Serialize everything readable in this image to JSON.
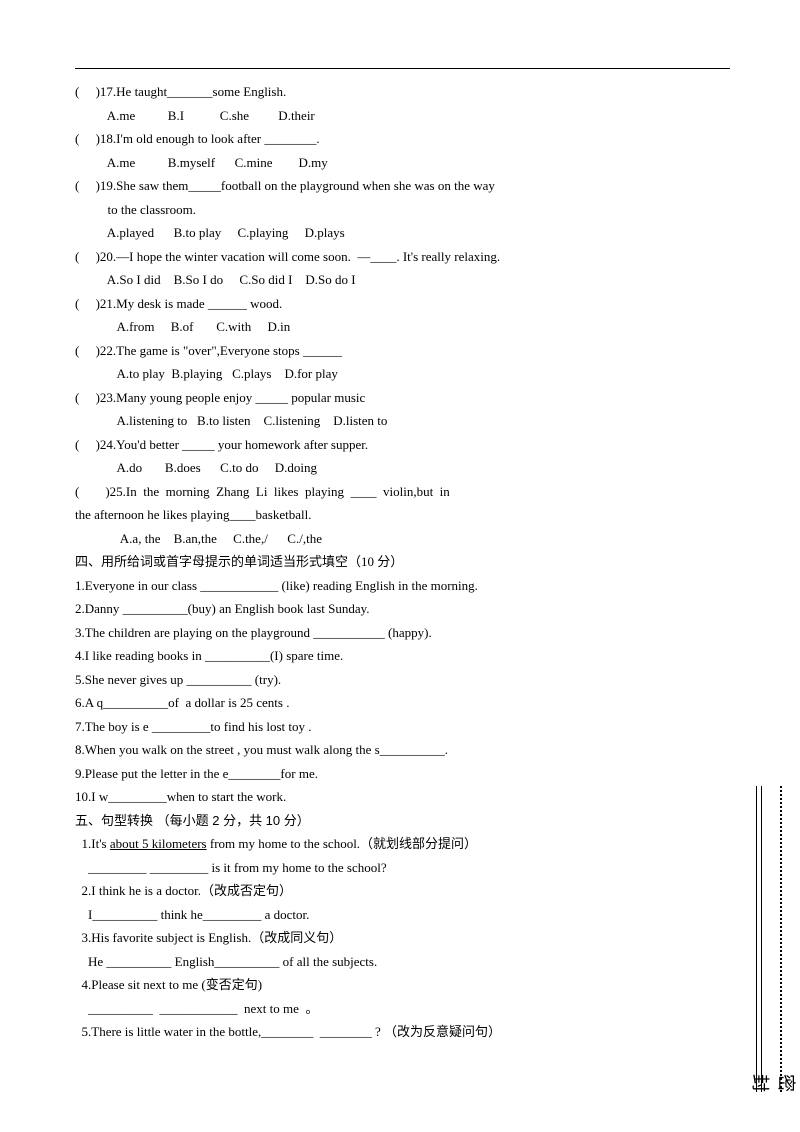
{
  "questions": [
    {
      "num": "17",
      "stem": "He taught_______some English.",
      "opts": [
        "A.me",
        "B.I",
        "C.she",
        "D.their"
      ]
    },
    {
      "num": "18",
      "stem": "I'm old enough to look after ________.",
      "opts": [
        "A.me",
        "B.myself",
        "C.mine",
        "D.my"
      ]
    },
    {
      "num": "19",
      "stem": "She saw them_____football on the playground when she was on the way\n          to the classroom.",
      "opts": [
        "A.played",
        "B.to play",
        "C.playing",
        "D.plays"
      ]
    },
    {
      "num": "20",
      "stem": "—I hope the winter vacation will come soon.  —____. It's really relaxing.",
      "opts": [
        "A.So I did",
        "B.So I do",
        "C.So did I",
        "D.So do I"
      ]
    },
    {
      "num": "21",
      "stem": "My desk is made ______ wood.",
      "opts": [
        "A.from",
        "B.of",
        "C.with",
        "D.in"
      ]
    },
    {
      "num": "22",
      "stem": "The game is \"over\",Everyone stops ______",
      "opts": [
        "A.to play",
        "B.playing",
        "C.plays",
        "D.for play"
      ]
    },
    {
      "num": "23",
      "stem": "Many young people enjoy _____ popular music",
      "opts": [
        "A.listening to",
        "B.to listen",
        "C.listening",
        "D.listen to"
      ]
    },
    {
      "num": "24",
      "stem": "You'd better _____ your homework after supper.",
      "opts": [
        "A.do",
        "B.does",
        "C.to do",
        "D.doing"
      ]
    }
  ],
  "q25": {
    "stem": "(        )25.In  the  morning  Zhang  Li  likes  playing  ____  violin,but  in\nthe afternoon he likes playing____basketball.",
    "opts": "              A.a, the    B.an,the     C.the,/      C./,the"
  },
  "section4": {
    "title": "四、用所给词或首字母提示的单词适当形式填空（10 分）",
    "items": [
      "1.Everyone in our class ____________ (like) reading English in the morning.",
      "2.Danny __________(buy) an English book last Sunday.",
      "3.The children are playing on the playground ___________ (happy).",
      "4.I like reading books in __________(I) spare time.",
      "5.She never gives up __________ (try).",
      "6.A q__________of  a dollar is 25 cents .",
      "7.The boy is e _________to find his lost toy .",
      "8.When you walk on the street , you must walk along the s__________.",
      "9.Please put the letter in the e________for me.",
      "10.I w_________when to start the work."
    ]
  },
  "section5": {
    "title": "五、句型转换 （每小题 2 分，共 10 分）",
    "items": [
      {
        "l1": "  1.It's <u>about 5 kilometers</u> from my home to the school.（就划线部分提问）",
        "l2": "    _________ _________ is it from my home to the school?"
      },
      {
        "l1": "  2.I think he is a doctor.（改成否定句）",
        "l2": "    I__________ think he_________ a doctor."
      },
      {
        "l1": "  3.His favorite subject is English.（改成同义句）",
        "l2": "    He __________ English__________ of all the subjects."
      },
      {
        "l1": "  4.Please sit next to me (变否定句)",
        "l2": "    __________  ____________  next to me  。"
      },
      {
        "l1": "  5.There is little water in the bottle,________  ________ ? （改为反意疑问句）",
        "l2": ""
      }
    ]
  },
  "vtext": "密 封"
}
